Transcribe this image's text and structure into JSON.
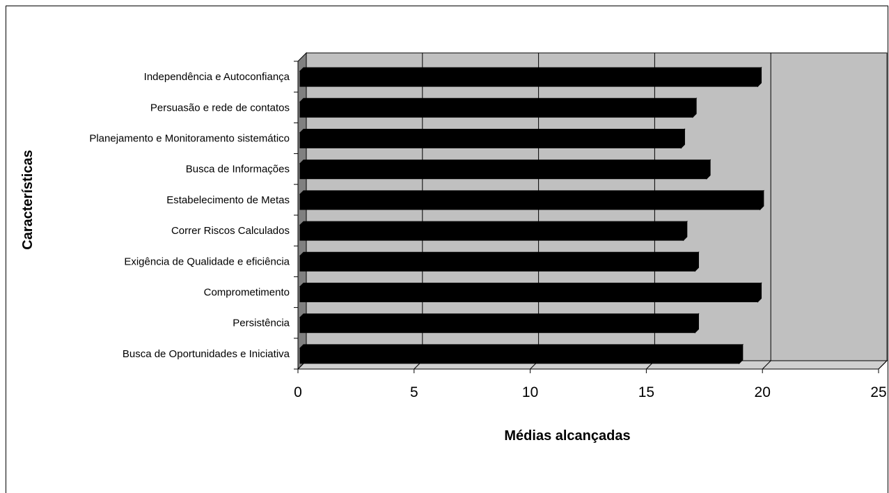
{
  "chart_data": {
    "type": "bar",
    "orientation": "horizontal",
    "title": "",
    "xlabel": "Médias alcançadas",
    "ylabel": "Características",
    "xlim": [
      0,
      25
    ],
    "xticks": [
      "0",
      "5",
      "10",
      "15",
      "20",
      "25"
    ],
    "grid": true,
    "legend": "none",
    "categories": [
      "Independência e Autoconfiança",
      "Persuasão e rede de contatos",
      "Planejamento e Monitoramento sistemático",
      "Busca de Informações",
      "Estabelecimento de Metas",
      "Correr Riscos Calculados",
      "Exigência de Qualidade e eficiência",
      "Comprometimento",
      "Persistência",
      "Busca de Oportunidades e Iniciativa"
    ],
    "values": [
      19.8,
      17.0,
      16.5,
      17.6,
      19.9,
      16.6,
      17.1,
      19.8,
      17.1,
      19.0
    ],
    "colors": {
      "bar": "#000000",
      "plot_back": "#c0c0c0",
      "left_wall": "#808080",
      "floor": "#d0d0d0",
      "grid": "#000000"
    }
  }
}
